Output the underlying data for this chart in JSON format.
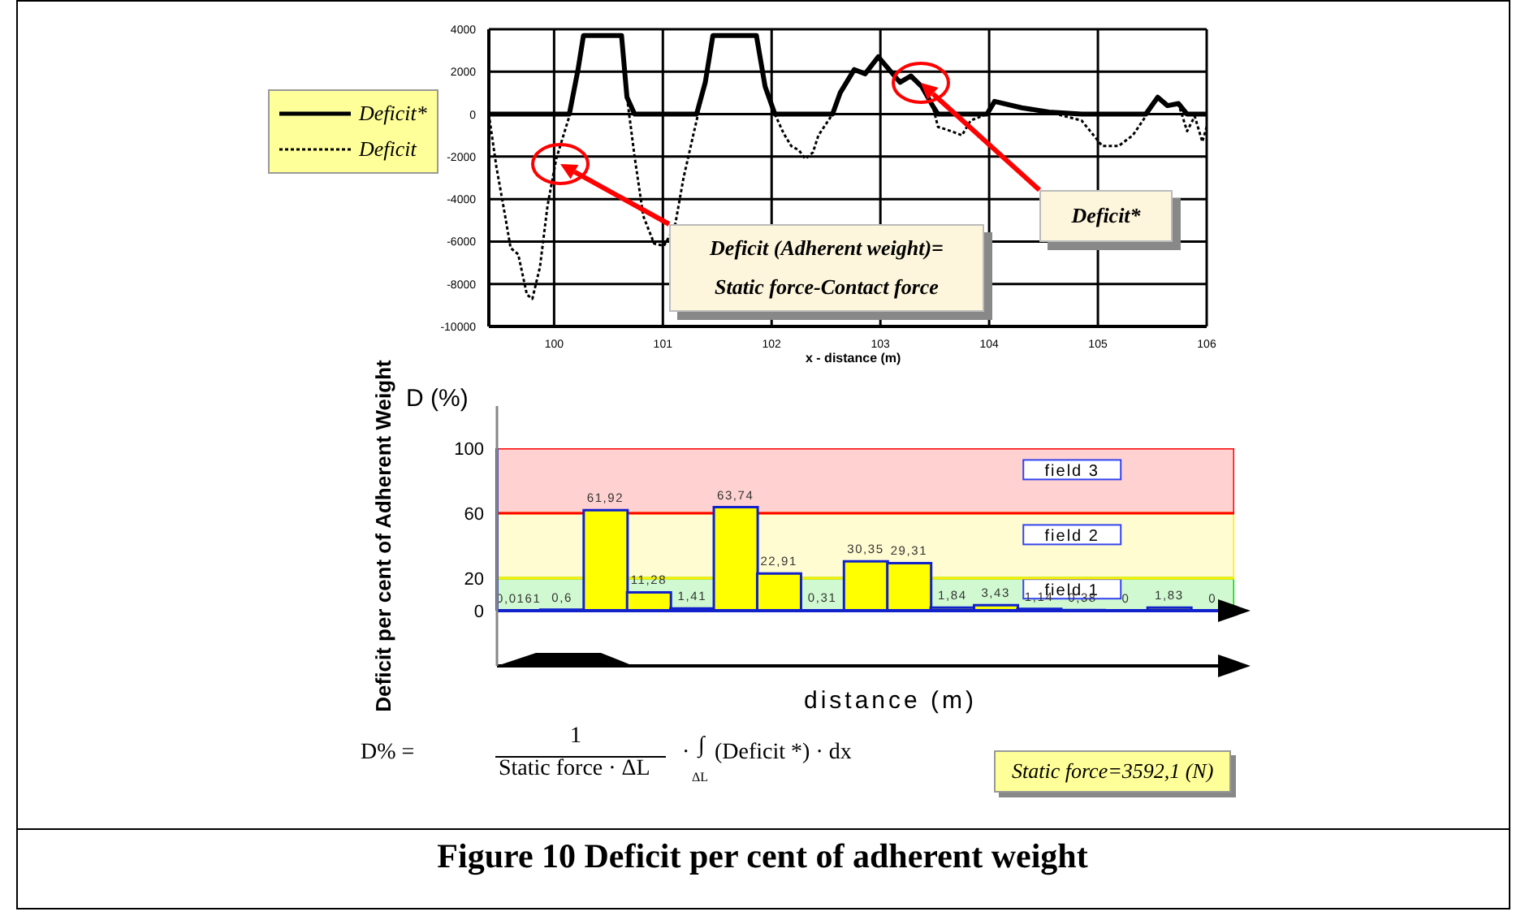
{
  "chart_data": [
    {
      "type": "line",
      "xlabel": "x - distance (m)",
      "x": [
        99.4,
        99.47,
        99.55,
        99.6,
        99.67,
        99.75,
        99.8,
        99.87,
        99.94,
        100.02,
        100.14,
        100.22,
        100.27,
        100.62,
        100.67,
        100.74,
        100.82,
        100.92,
        101.01,
        101.11,
        101.19,
        101.31,
        101.39,
        101.46,
        101.86,
        101.94,
        102.03,
        102.11,
        102.18,
        102.25,
        102.31,
        102.38,
        102.43,
        102.56,
        102.63,
        102.76,
        102.86,
        102.98,
        103.08,
        103.18,
        103.28,
        103.38,
        103.48,
        103.53,
        103.65,
        103.75,
        103.83,
        103.98,
        104.05,
        104.3,
        104.55,
        104.85,
        105.04,
        105.19,
        105.32,
        105.44,
        105.55,
        105.64,
        105.74,
        105.82,
        105.89,
        105.96,
        106
      ],
      "series": [
        {
          "name": "Deficit*",
          "color": "#000000",
          "line_style": "solid",
          "values": [
            0,
            0,
            0,
            0,
            0,
            0,
            0,
            0,
            0,
            0,
            0,
            2100,
            3700,
            3700,
            800,
            0,
            0,
            0,
            0,
            0,
            0,
            0,
            1500,
            3700,
            3700,
            1300,
            0,
            0,
            0,
            0,
            0,
            0,
            0,
            0,
            1000,
            2100,
            1900,
            2700,
            2100,
            1500,
            1800,
            1300,
            400,
            0,
            0,
            0,
            0,
            0,
            600,
            300,
            100,
            0,
            0,
            0,
            0,
            0,
            800,
            400,
            500,
            0,
            0,
            0,
            0
          ]
        },
        {
          "name": "Deficit",
          "color": "#000000",
          "line_style": "dotted",
          "values": [
            0,
            -2500,
            -4800,
            -6300,
            -6600,
            -8500,
            -8700,
            -7200,
            -4300,
            -2100,
            -100,
            2100,
            3700,
            3700,
            800,
            -2000,
            -4800,
            -6100,
            -6200,
            -5300,
            -3000,
            -300,
            1500,
            3700,
            3700,
            1300,
            0,
            -900,
            -1500,
            -1700,
            -2100,
            -1800,
            -1000,
            0,
            1000,
            2100,
            1900,
            2700,
            2100,
            1500,
            1800,
            1300,
            400,
            -600,
            -800,
            -1000,
            -300,
            0,
            600,
            300,
            100,
            -300,
            -1500,
            -1500,
            -1000,
            -100,
            800,
            400,
            500,
            -800,
            -100,
            -1300,
            -600
          ]
        }
      ],
      "xlim": [
        99.4,
        106
      ],
      "xticks": [
        100,
        101,
        102,
        103,
        104,
        105,
        106
      ],
      "ylim": [
        -10000,
        4000
      ],
      "yticks": [
        -10000,
        -8000,
        -6000,
        -4000,
        -2000,
        0,
        2000,
        4000
      ],
      "grid": true,
      "legend": "left",
      "marker": "none",
      "annotations": [
        "Deficit (Adherent weight)=\nStatic force-Contact force",
        "Deficit*"
      ]
    },
    {
      "type": "bar",
      "title": "Figure 10 Deficit per cent of adherent weight",
      "xlabel": "distance (m)",
      "ylabel": "Deficit per cent of Adherent Weight",
      "categories": [
        null,
        null,
        null,
        null,
        null,
        null,
        null,
        null,
        null,
        null,
        null,
        null,
        null,
        null,
        null,
        null,
        null
      ],
      "values": [
        0.0161,
        0.6,
        61.92,
        11.28,
        1.41,
        63.74,
        22.91,
        0.31,
        30.35,
        29.31,
        1.84,
        3.43,
        1.14,
        0.38,
        0,
        1.83,
        0
      ],
      "value_labels": [
        "0,0161",
        "0,6",
        "61,92",
        "11,28",
        "1,41",
        "63,74",
        "22,91",
        "0,31",
        "30,35",
        "29,31",
        "1,84",
        "3,43",
        "1,14",
        "0,38",
        "0",
        "1,83",
        "0"
      ],
      "color": "#ffff00",
      "ylim": [
        0,
        100
      ],
      "yticks": [
        0,
        20,
        60,
        100
      ],
      "grid": false,
      "bands": [
        {
          "axis": "y",
          "from": 0,
          "to": 20,
          "label": "field 1",
          "color": "#00dd00"
        },
        {
          "axis": "y",
          "from": 20,
          "to": 60,
          "label": "field 2",
          "color": "#ffee00"
        },
        {
          "axis": "y",
          "from": 60,
          "to": 100,
          "label": "field 3",
          "color": "#ff0000"
        }
      ],
      "annotations": [
        "D (%)",
        "D% =",
        "1",
        "Static force · ΔL",
        "·",
        "∫",
        "ΔL",
        "(Deficit *) · dx",
        "Static force=3592,1 (N)"
      ]
    }
  ]
}
